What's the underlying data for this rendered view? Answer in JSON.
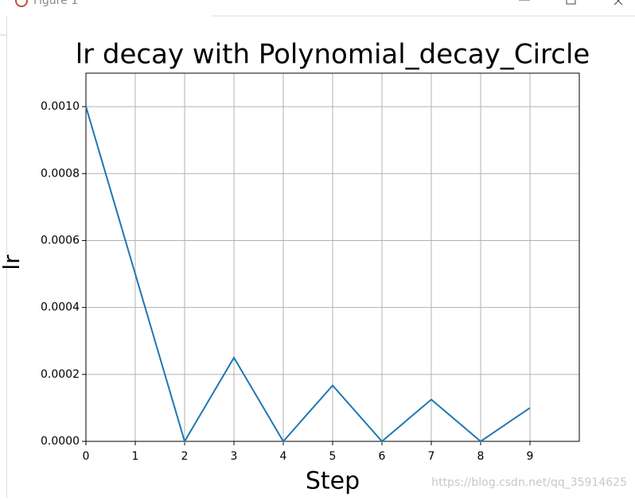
{
  "window": {
    "title": "Figure 1"
  },
  "watermark": "https://blog.csdn.net/qq_35914625",
  "chart_data": {
    "type": "line",
    "title": "lr decay with Polynomial_decay_Circle",
    "xlabel": "Step",
    "ylabel": "lr",
    "x": [
      0,
      1,
      2,
      3,
      4,
      5,
      6,
      7,
      8,
      9
    ],
    "values": [
      0.001,
      0.0005,
      0,
      0.00025,
      0,
      0.000167,
      0,
      0.000125,
      0,
      0.0001
    ],
    "color": "#1f77b4",
    "xlim": [
      0,
      10
    ],
    "xticks": [
      0,
      1,
      2,
      3,
      4,
      5,
      6,
      7,
      8,
      9
    ],
    "ylim": [
      0,
      0.0011
    ],
    "yticks": [
      {
        "value": 0,
        "label": "0.0000"
      },
      {
        "value": 0.0002,
        "label": "0.0002"
      },
      {
        "value": 0.0004,
        "label": "0.0004"
      },
      {
        "value": 0.0006,
        "label": "0.0006"
      },
      {
        "value": 0.0008,
        "label": "0.0008"
      },
      {
        "value": 0.001,
        "label": "0.0010"
      }
    ],
    "grid": true
  }
}
